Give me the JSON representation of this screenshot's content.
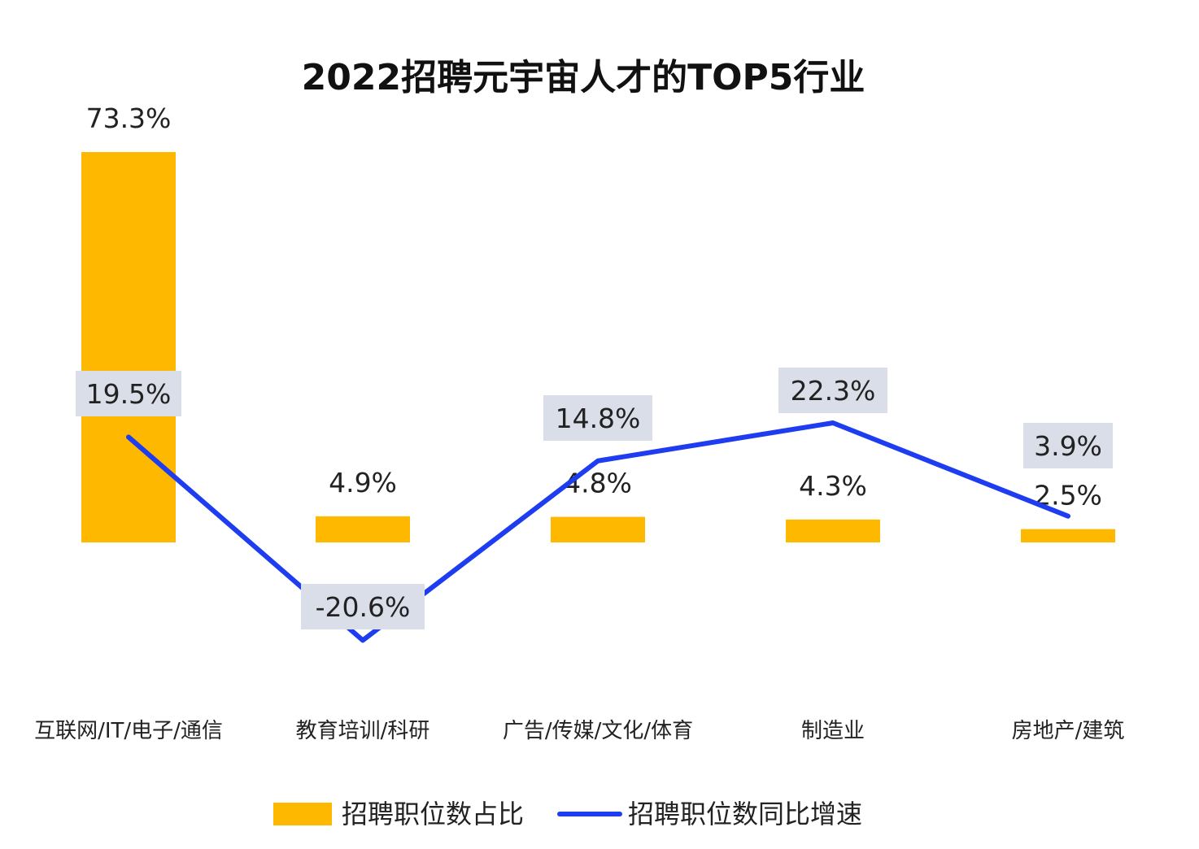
{
  "chart_data": {
    "type": "bar",
    "title": "2022招聘元宇宙人才的TOP5行业",
    "categories": [
      "互联网/IT/电子/通信",
      "教育培训/科研",
      "广告/传媒/文化/体育",
      "制造业",
      "房地产/建筑"
    ],
    "series": [
      {
        "name": "招聘职位数占比",
        "type": "bar",
        "values": [
          73.3,
          4.9,
          4.8,
          4.3,
          2.5
        ],
        "labels": [
          "73.3%",
          "4.9%",
          "4.8%",
          "4.3%",
          "2.5%"
        ],
        "color": "#FFB800"
      },
      {
        "name": "招聘职位数同比增速",
        "type": "line",
        "values": [
          19.5,
          -20.6,
          14.8,
          22.3,
          3.9
        ],
        "labels": [
          "19.5%",
          "-20.6%",
          "14.8%",
          "22.3%",
          "3.9%"
        ],
        "color": "#1E3CF0"
      }
    ],
    "grid": false,
    "legend": "bottom-center",
    "label_box_color": "#D9DEE8"
  }
}
